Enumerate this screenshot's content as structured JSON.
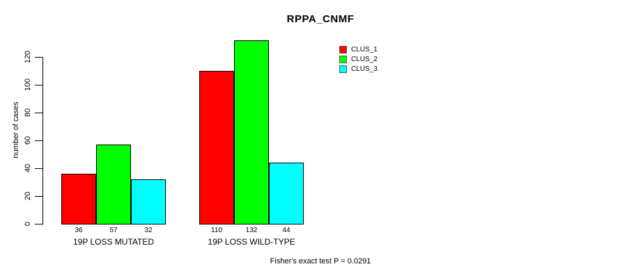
{
  "title": "RPPA_CNMF",
  "y_axis": {
    "label": "number of cases",
    "ticks": [
      0,
      20,
      40,
      60,
      80,
      100,
      120
    ]
  },
  "footer": "Fisher's exact test P = 0.0291",
  "legend": {
    "items": [
      {
        "label": "CLUS_1",
        "color": "#ff0000"
      },
      {
        "label": "CLUS_2",
        "color": "#00ff00"
      },
      {
        "label": "CLUS_3",
        "color": "#00ffff"
      }
    ]
  },
  "chart_data": {
    "type": "bar",
    "title": "RPPA_CNMF",
    "xlabel": "",
    "ylabel": "number of cases",
    "categories": [
      "19P LOSS MUTATED",
      "19P LOSS WILD-TYPE"
    ],
    "series": [
      {
        "name": "CLUS_1",
        "color": "#ff0000",
        "values": [
          36,
          110
        ]
      },
      {
        "name": "CLUS_2",
        "color": "#00ff00",
        "values": [
          57,
          132
        ]
      },
      {
        "name": "CLUS_3",
        "color": "#00ffff",
        "values": [
          32,
          44
        ]
      }
    ],
    "bar_value_labels": [
      [
        36,
        57,
        32
      ],
      [
        110,
        132,
        44
      ]
    ],
    "yticks": [
      0,
      20,
      40,
      60,
      80,
      100,
      120
    ],
    "ylim": [
      0,
      138
    ],
    "grid": false,
    "legend_position": "top-right",
    "bar_border_color": "#000000",
    "annotation": "Fisher's exact test P = 0.0291"
  }
}
